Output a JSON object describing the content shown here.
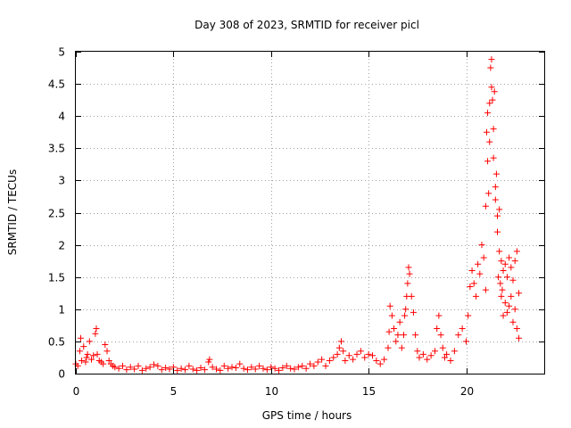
{
  "chart_data": {
    "type": "scatter",
    "title": "Day 308 of 2023, SRMTID for receiver picl",
    "xlabel": "GPS time / hours",
    "ylabel": "SRMTID / TECUs",
    "xlim": [
      0,
      24
    ],
    "ylim": [
      0,
      5
    ],
    "xticks": [
      0,
      5,
      10,
      15,
      20
    ],
    "xtick_labels": [
      "0",
      "5",
      "10",
      "15",
      "20"
    ],
    "yticks": [
      0,
      0.5,
      1,
      1.5,
      2,
      2.5,
      3,
      3.5,
      4,
      4.5,
      5
    ],
    "ytick_labels": [
      "0",
      "0.5",
      "1",
      "1.5",
      "2",
      "2.5",
      "3",
      "3.5",
      "4",
      "4.5",
      "5"
    ],
    "grid": true,
    "marker": "+",
    "color": "#ff0000",
    "series": [
      {
        "name": "SRMTID picl",
        "x": [
          0.0,
          0.1,
          0.2,
          0.25,
          0.3,
          0.4,
          0.5,
          0.55,
          0.6,
          0.7,
          0.8,
          0.9,
          1.0,
          1.05,
          1.1,
          1.2,
          1.3,
          1.4,
          1.5,
          1.6,
          1.7,
          1.8,
          1.9,
          2.0,
          2.2,
          2.4,
          2.6,
          2.8,
          3.0,
          3.2,
          3.4,
          3.6,
          3.8,
          4.0,
          4.2,
          4.4,
          4.6,
          4.8,
          5.0,
          5.2,
          5.4,
          5.6,
          5.8,
          6.0,
          6.2,
          6.4,
          6.6,
          6.8,
          6.85,
          7.0,
          7.2,
          7.4,
          7.6,
          7.8,
          8.0,
          8.2,
          8.4,
          8.6,
          8.8,
          9.0,
          9.2,
          9.4,
          9.6,
          9.8,
          10.0,
          10.2,
          10.4,
          10.6,
          10.8,
          11.0,
          11.2,
          11.4,
          11.6,
          11.8,
          12.0,
          12.2,
          12.4,
          12.6,
          12.8,
          13.0,
          13.2,
          13.4,
          13.5,
          13.6,
          13.7,
          13.8,
          14.0,
          14.2,
          14.4,
          14.6,
          14.8,
          15.0,
          15.2,
          15.4,
          15.6,
          15.8,
          16.0,
          16.05,
          16.1,
          16.2,
          16.3,
          16.4,
          16.5,
          16.6,
          16.7,
          16.8,
          16.85,
          16.9,
          16.95,
          17.0,
          17.05,
          17.1,
          17.2,
          17.3,
          17.4,
          17.5,
          17.6,
          17.8,
          18.0,
          18.2,
          18.4,
          18.5,
          18.6,
          18.7,
          18.8,
          18.9,
          19.0,
          19.2,
          19.4,
          19.6,
          19.8,
          20.0,
          20.1,
          20.2,
          20.3,
          20.4,
          20.5,
          20.6,
          20.7,
          20.8,
          20.9,
          21.0,
          21.0,
          21.05,
          21.1,
          21.1,
          21.15,
          21.2,
          21.2,
          21.25,
          21.3,
          21.3,
          21.35,
          21.4,
          21.4,
          21.45,
          21.5,
          21.5,
          21.55,
          21.6,
          21.6,
          21.65,
          21.7,
          21.7,
          21.75,
          21.8,
          21.8,
          21.85,
          21.9,
          21.9,
          22.0,
          22.0,
          22.1,
          22.1,
          22.2,
          22.2,
          22.3,
          22.3,
          22.4,
          22.4,
          22.5,
          22.5,
          22.6,
          22.6,
          22.7,
          22.7
        ],
        "y": [
          0.15,
          0.12,
          0.35,
          0.55,
          0.2,
          0.42,
          0.18,
          0.25,
          0.3,
          0.5,
          0.22,
          0.28,
          0.62,
          0.7,
          0.3,
          0.2,
          0.18,
          0.15,
          0.45,
          0.35,
          0.2,
          0.15,
          0.12,
          0.1,
          0.08,
          0.12,
          0.06,
          0.1,
          0.07,
          0.12,
          0.05,
          0.08,
          0.1,
          0.14,
          0.12,
          0.06,
          0.09,
          0.07,
          0.1,
          0.05,
          0.08,
          0.06,
          0.12,
          0.07,
          0.05,
          0.09,
          0.06,
          0.18,
          0.22,
          0.1,
          0.07,
          0.05,
          0.12,
          0.08,
          0.1,
          0.09,
          0.15,
          0.08,
          0.06,
          0.1,
          0.07,
          0.12,
          0.08,
          0.06,
          0.1,
          0.08,
          0.05,
          0.09,
          0.12,
          0.08,
          0.07,
          0.1,
          0.12,
          0.08,
          0.15,
          0.12,
          0.18,
          0.22,
          0.12,
          0.2,
          0.25,
          0.3,
          0.4,
          0.5,
          0.35,
          0.2,
          0.28,
          0.22,
          0.3,
          0.35,
          0.25,
          0.3,
          0.28,
          0.2,
          0.15,
          0.22,
          0.4,
          0.65,
          1.05,
          0.9,
          0.7,
          0.5,
          0.6,
          0.8,
          0.4,
          0.6,
          0.9,
          1.0,
          1.2,
          1.4,
          1.65,
          1.55,
          1.2,
          0.95,
          0.6,
          0.35,
          0.25,
          0.3,
          0.22,
          0.28,
          0.35,
          0.7,
          0.9,
          0.6,
          0.4,
          0.25,
          0.3,
          0.2,
          0.35,
          0.6,
          0.7,
          0.5,
          0.9,
          1.35,
          1.6,
          1.4,
          1.2,
          1.7,
          1.55,
          2.0,
          1.8,
          1.3,
          2.6,
          3.75,
          4.05,
          3.3,
          2.8,
          4.2,
          3.6,
          4.75,
          4.88,
          4.45,
          4.25,
          3.8,
          3.35,
          4.38,
          2.7,
          2.9,
          3.1,
          2.45,
          2.2,
          1.5,
          2.55,
          1.9,
          1.4,
          1.2,
          1.75,
          1.3,
          0.9,
          1.6,
          1.1,
          1.7,
          0.95,
          1.5,
          1.05,
          1.8,
          1.2,
          1.65,
          0.8,
          1.45,
          1.0,
          1.75,
          0.7,
          1.9,
          0.55,
          1.25
        ]
      }
    ]
  }
}
